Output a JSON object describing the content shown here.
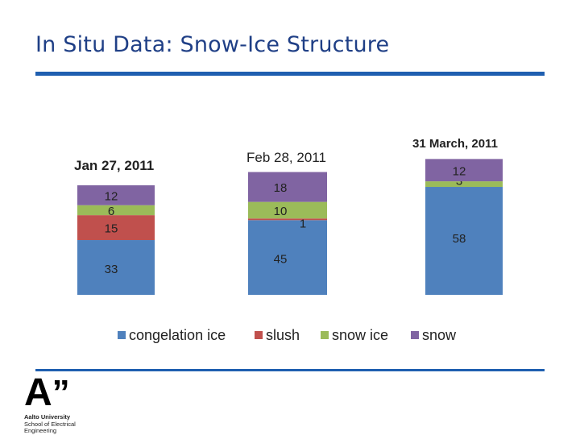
{
  "page": {
    "title": "In Situ Data: Snow-Ice Structure"
  },
  "logo": {
    "mark": "A",
    "quote": "”",
    "university": "Aalto University",
    "school_line1": "School of Electrical",
    "school_line2": "Engineering"
  },
  "colors": {
    "title": "#1f3f86",
    "rule": "#1f5fb0",
    "congelation_ice": "#4f81bd",
    "slush": "#c0504d",
    "snow_ice": "#9bbb59",
    "snow": "#8064a2"
  },
  "chart_data": {
    "type": "bar",
    "stacked": true,
    "categories": [
      "Jan 27, 2011",
      "Feb 28, 2011",
      "31 March, 2011"
    ],
    "series": [
      {
        "name": "congelation ice",
        "color": "#4f81bd",
        "values": [
          33,
          45,
          58
        ]
      },
      {
        "name": "slush",
        "color": "#c0504d",
        "values": [
          15,
          1,
          0
        ]
      },
      {
        "name": "snow ice",
        "color": "#9bbb59",
        "values": [
          6,
          10,
          3
        ]
      },
      {
        "name": "snow",
        "color": "#8064a2",
        "values": [
          12,
          18,
          12
        ]
      }
    ],
    "data_labels": [
      [
        "33",
        "15",
        "6",
        "12"
      ],
      [
        "45",
        "1",
        "10",
        "18"
      ],
      [
        "58",
        "",
        "3",
        "12"
      ]
    ],
    "legend": [
      "congelation ice",
      "slush",
      "snow ice",
      "snow"
    ],
    "legend_position": "bottom",
    "title": "",
    "xlabel": "",
    "ylabel": "",
    "grid": false
  }
}
